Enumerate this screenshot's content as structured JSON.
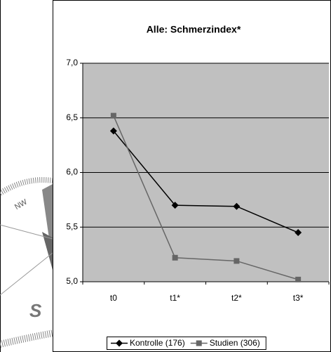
{
  "chart_data": {
    "type": "line",
    "title": "Alle: Schmerzindex*",
    "categories": [
      "t0",
      "t1*",
      "t2*",
      "t3*"
    ],
    "series": [
      {
        "name": "Kontrolle (176)",
        "color": "#000000",
        "marker": "diamond",
        "values": [
          6.38,
          5.7,
          5.69,
          5.45
        ]
      },
      {
        "name": "Studien (306)",
        "color": "#666666",
        "marker": "square",
        "values": [
          6.52,
          5.22,
          5.19,
          5.02
        ]
      }
    ],
    "ylim": [
      5,
      7
    ],
    "yticks": [
      {
        "value": 5,
        "label": "5,0"
      },
      {
        "value": 5.5,
        "label": "5,5"
      },
      {
        "value": 6,
        "label": "6,0"
      },
      {
        "value": 6.5,
        "label": "6,5"
      },
      {
        "value": 7,
        "label": "7,0"
      }
    ],
    "grid": true,
    "plot_background": "#c0c0c0",
    "legend": "bottom"
  },
  "compass_labels": [
    "NW",
    "S"
  ]
}
